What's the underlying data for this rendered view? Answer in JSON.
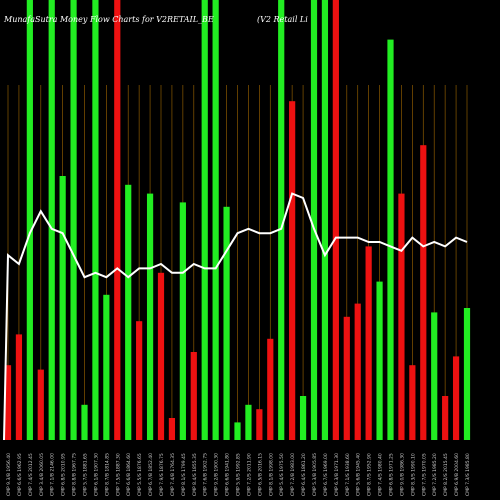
{
  "chart_data": {
    "type": "bar",
    "title": "MunafaSutra  Money Flow  Charts for V2RETAIL_BE",
    "subtitle": "(V2 Retail Li",
    "colors": {
      "background": "#000000",
      "up": "#22ee22",
      "down": "#ee1111",
      "line": "#ffffff",
      "grid": "#8b5a00"
    },
    "ylim": [
      0,
      100
    ],
    "categories": [
      "CMP 9.3/B 1956.40",
      "CMP 6.6/S 1962.95",
      "CMP 7.4/S 2012.45",
      "CMP 3.4/B 2060.05",
      "CMP 7.1/B 2146.00",
      "CMP 6.8/S 2010.95",
      "CMP 8.8/B 1967.75",
      "CMP 5.7/S 1881.65",
      "CMP 6.1/B 1907.30",
      "CMP 8.7/B 1814.85",
      "CMP 7.5/S 1887.30",
      "CMP 6.6/B 1864.60",
      "CMP 5.5/S 1876.65",
      "CMP 6.7/B 1852.40",
      "CMP 7.9/S 1876.75",
      "CMP 7.4/B 1764.35",
      "CMP 8.1/S 1799.45",
      "CMP 8.4/S 1855.35",
      "CMP 7.6/B 1902.75",
      "CMP 9.2/B 1900.30",
      "CMP 6.6/B 1941.80",
      "CMP 5.9/S 1992.85",
      "CMP 7.2/S 2011.90",
      "CMP 6.5/B 2016.15",
      "CMP 8.1/B 1998.00",
      "CMP 5.4/S 1975.50",
      "CMP 7.2/B 1983.00",
      "CMP 6.4/S 1861.20",
      "CMP 5.3/B 1905.85",
      "CMP 6.7/S 1969.00",
      "CMP 6.3/B 1971.30",
      "CMP 7.1/S 1938.60",
      "CMP 5.6/B 1945.40",
      "CMP 8.7/S 1952.90",
      "CMP 7.4/S 1980.40",
      "CMP 6.8/S 1971.25",
      "CMP 9.0/B 1986.30",
      "CMP 8.3/S 1990.10",
      "CMP 7.7/S 1970.05",
      "CMP 7.2/S 1985.20",
      "CMP 8.2/S 2015.45",
      "CMP 6.9/B 2004.60",
      "CMP 7.3/S 1985.80"
    ],
    "series": [
      {
        "values": [
          17,
          24,
          100,
          16,
          100,
          60,
          100,
          8,
          100,
          33,
          100,
          58,
          27,
          56,
          38,
          5,
          54,
          20,
          100,
          100,
          53,
          4,
          8,
          7,
          23,
          100,
          77,
          10,
          100,
          100,
          100,
          28,
          31,
          44,
          36,
          91,
          56,
          17,
          67,
          29,
          10,
          19,
          30
        ],
        "signs": [
          "down",
          "down",
          "up",
          "down",
          "up",
          "up",
          "up",
          "up",
          "up",
          "up",
          "down",
          "up",
          "down",
          "up",
          "down",
          "down",
          "up",
          "down",
          "up",
          "up",
          "up",
          "up",
          "up",
          "down",
          "down",
          "up",
          "down",
          "up",
          "up",
          "up",
          "down",
          "down",
          "down",
          "down",
          "up",
          "up",
          "down",
          "down",
          "down",
          "up",
          "down",
          "down",
          "up"
        ]
      },
      {
        "values": [
          42,
          40,
          47,
          52,
          48,
          47,
          42,
          37,
          38,
          37,
          39,
          37,
          39,
          39,
          40,
          38,
          38,
          40,
          39,
          39,
          43,
          47,
          48,
          47,
          47,
          48,
          56,
          55,
          48,
          42,
          46,
          46,
          46,
          45,
          45,
          44,
          43,
          46,
          44,
          45,
          44,
          46,
          45
        ]
      }
    ]
  }
}
